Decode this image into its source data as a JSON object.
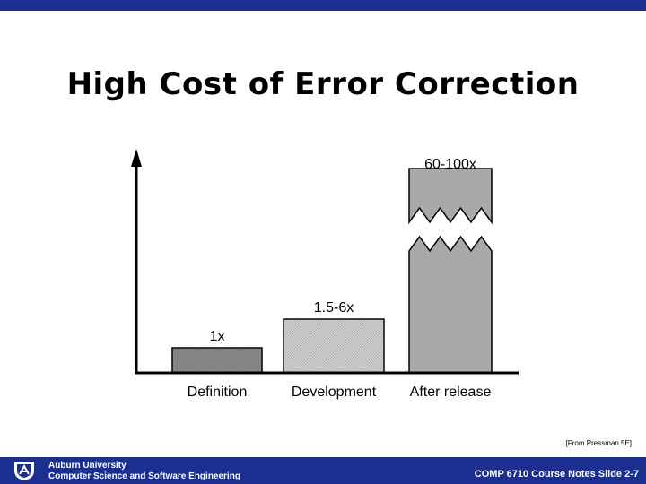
{
  "slide": {
    "title": "High Cost of Error Correction",
    "citation": "[From Pressman 5E]"
  },
  "footer": {
    "university": "Auburn University",
    "department": "Computer Science and Software Engineering",
    "course_slide": "COMP 6710 Course Notes Slide 2-7",
    "logo": "auburn-logo-icon",
    "bar_color": "#1a2f8f"
  },
  "chart_data": {
    "type": "bar",
    "categories": [
      "Definition",
      "Development",
      "After release"
    ],
    "values": [
      1,
      6,
      100
    ],
    "data_labels": [
      "1x",
      "1.5-6x",
      "60-100x"
    ],
    "axis_break_on": "After release",
    "title": "",
    "xlabel": "",
    "ylabel": "",
    "grid": false,
    "legend": "none",
    "bar_colors": [
      "#8a8a8a",
      "#cfcfcf",
      "#a9a9a9"
    ]
  }
}
